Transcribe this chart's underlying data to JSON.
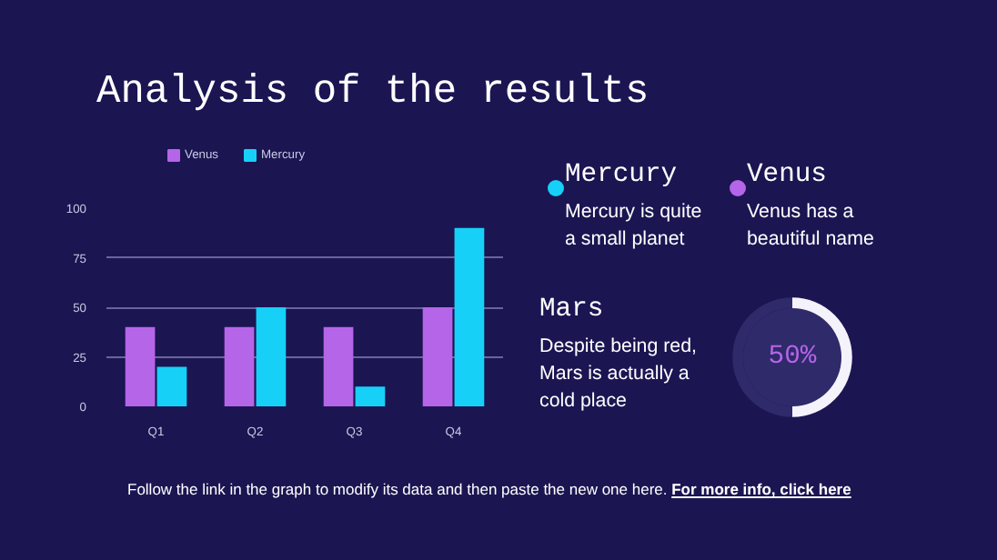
{
  "chart_data": [
    {
      "type": "bar",
      "title": "Analysis of the results",
      "categories": [
        "Q1",
        "Q2",
        "Q3",
        "Q4"
      ],
      "series": [
        {
          "name": "Venus",
          "color": "#b565e8",
          "values": [
            40,
            40,
            40,
            50
          ]
        },
        {
          "name": "Mercury",
          "color": "#17d0f7",
          "values": [
            20,
            50,
            10,
            90
          ]
        }
      ],
      "ylim": [
        0,
        100
      ],
      "yticks": [
        0,
        25,
        50,
        75,
        100
      ],
      "grid": "y",
      "legend": "top",
      "annotations": [
        "Follow the link in the graph to modify its data and then paste the new one here.",
        "For more info, click here"
      ]
    },
    {
      "type": "other",
      "annotations": [
        "Mercury",
        "Mercury is quite\na small planet",
        "Venus",
        "Venus has a\nbeautiful name"
      ],
      "colors": [
        "#17d0f7",
        "#b565e8"
      ]
    },
    {
      "type": "other",
      "annotations": [
        "Mars",
        "Despite being red,\nMars is actually a\ncold place"
      ]
    },
    {
      "type": "donut",
      "categories": [
        null,
        null
      ],
      "values": [
        50,
        50
      ],
      "colors": [
        "#f4f2fa",
        "#2f2a6a"
      ],
      "annotations": [
        "50%"
      ]
    }
  ]
}
